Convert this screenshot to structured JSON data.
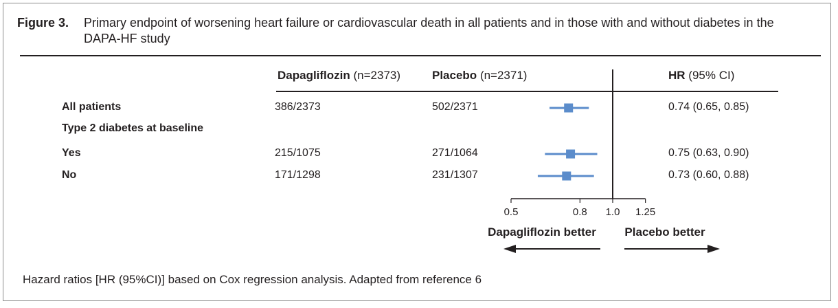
{
  "caption": {
    "label": "Figure 3.",
    "text": "Primary endpoint of worsening heart failure or cardiovascular death in all patients and in those with and without diabetes in the DAPA-HF study"
  },
  "columns": {
    "dapa_bold": "Dapagliflozin",
    "dapa_n": "(n=2373)",
    "placebo_bold": "Placebo",
    "placebo_n": "(n=2371)",
    "hr_bold": "HR",
    "hr_ci": "(95% CI)"
  },
  "chart_data": {
    "type": "forest",
    "xscale": "log",
    "xlim": [
      0.5,
      1.25
    ],
    "xticks": [
      0.5,
      0.8,
      1.0,
      1.25
    ],
    "xtick_labels": [
      "0.5",
      "0.8",
      "1.0",
      "1.25"
    ],
    "reference_line": 1.0,
    "left_label": "Dapagliflozin better",
    "right_label": "Placebo better",
    "rows": [
      {
        "label": "All patients",
        "dapa": "386/2373",
        "placebo": "502/2371",
        "hr": 0.74,
        "lo": 0.65,
        "hi": 0.85,
        "hr_text": "0.74 (0.65, 0.85)",
        "header": false
      },
      {
        "label": "Type 2 diabetes at baseline",
        "header": true
      },
      {
        "label": "Yes",
        "dapa": "215/1075",
        "placebo": "271/1064",
        "hr": 0.75,
        "lo": 0.63,
        "hi": 0.9,
        "hr_text": "0.75 (0.63, 0.90)",
        "header": false
      },
      {
        "label": "No",
        "dapa": "171/1298",
        "placebo": "231/1307",
        "hr": 0.73,
        "lo": 0.6,
        "hi": 0.88,
        "hr_text": "0.73 (0.60, 0.88)",
        "header": false
      }
    ]
  },
  "colors": {
    "marker": "#5b8ccb",
    "text": "#231f20"
  },
  "footnote": "Hazard ratios [HR (95%CI)] based on Cox regression analysis.  Adapted from reference 6"
}
